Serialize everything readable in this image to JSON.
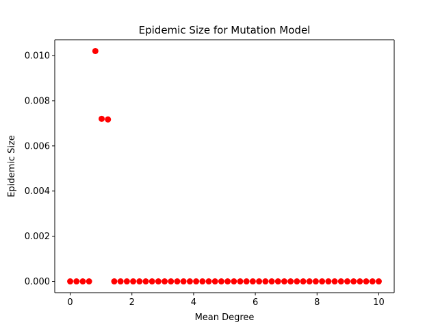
{
  "chart_data": {
    "type": "scatter",
    "title": "Epidemic Size for Mutation Model",
    "xlabel": "Mean Degree",
    "ylabel": "Epidemic Size",
    "xlim": [
      -0.5,
      10.5
    ],
    "ylim": [
      -0.0005,
      0.0107
    ],
    "xticks": [
      0,
      2,
      4,
      6,
      8,
      10
    ],
    "xtick_labels": [
      "0",
      "2",
      "4",
      "6",
      "8",
      "10"
    ],
    "yticks": [
      0.0,
      0.002,
      0.004,
      0.006,
      0.008,
      0.01
    ],
    "ytick_labels": [
      "0.000",
      "0.002",
      "0.004",
      "0.006",
      "0.008",
      "0.010"
    ],
    "grid": false,
    "marker_color": "#ff0000",
    "series": [
      {
        "name": "Epidemic Size",
        "x": [
          0.0,
          0.204,
          0.408,
          0.612,
          0.816,
          1.02,
          1.224,
          1.429,
          1.633,
          1.837,
          2.041,
          2.245,
          2.449,
          2.653,
          2.857,
          3.061,
          3.265,
          3.469,
          3.673,
          3.878,
          4.082,
          4.286,
          4.49,
          4.694,
          4.898,
          5.102,
          5.306,
          5.51,
          5.714,
          5.918,
          6.122,
          6.327,
          6.531,
          6.735,
          6.939,
          7.143,
          7.347,
          7.551,
          7.755,
          7.959,
          8.163,
          8.367,
          8.571,
          8.776,
          8.98,
          9.184,
          9.388,
          9.592,
          9.796,
          10.0
        ],
        "y": [
          0.0,
          0.0,
          0.0,
          0.0,
          0.0102,
          0.0072,
          0.00717,
          0.0,
          0.0,
          0.0,
          0.0,
          0.0,
          0.0,
          0.0,
          0.0,
          0.0,
          0.0,
          0.0,
          0.0,
          0.0,
          0.0,
          0.0,
          0.0,
          0.0,
          0.0,
          0.0,
          0.0,
          0.0,
          0.0,
          0.0,
          0.0,
          0.0,
          0.0,
          0.0,
          0.0,
          0.0,
          0.0,
          0.0,
          0.0,
          0.0,
          0.0,
          0.0,
          0.0,
          0.0,
          0.0,
          0.0,
          0.0,
          0.0,
          0.0,
          0.0
        ]
      }
    ]
  }
}
